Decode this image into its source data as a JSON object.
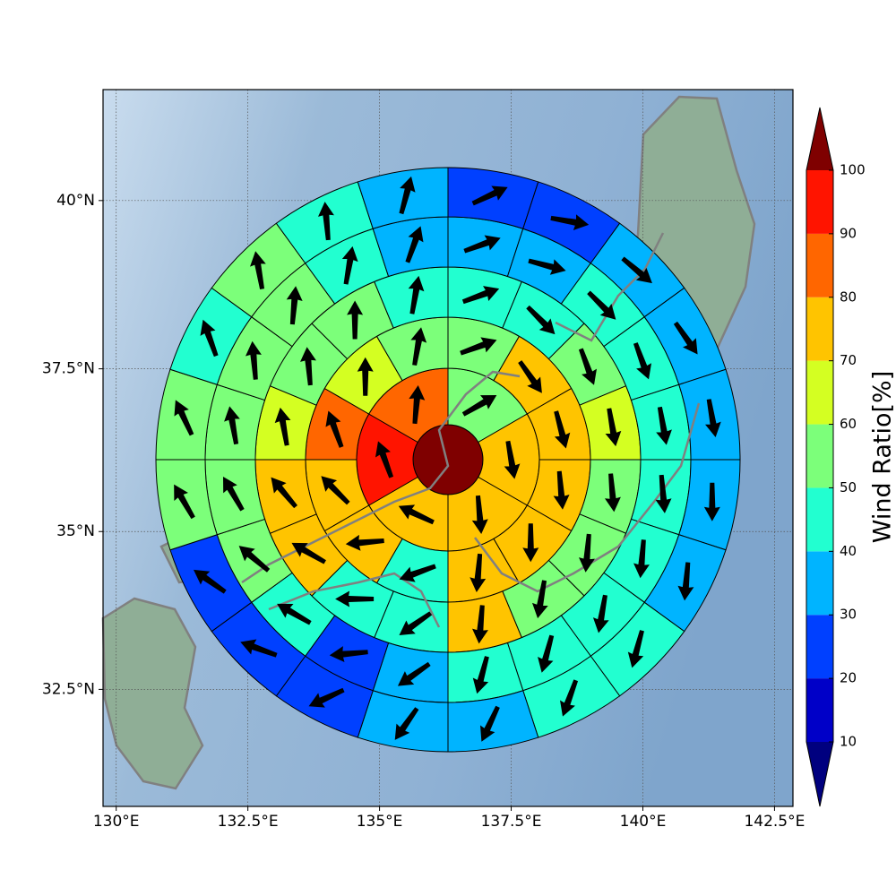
{
  "chart_data": {
    "type": "polar-map",
    "xlim": [
      129.75,
      142.85
    ],
    "ylim": [
      30.6,
      41.6
    ],
    "xticks": [
      {
        "value": 130,
        "label": "130°E"
      },
      {
        "value": 132.5,
        "label": "132.5°E"
      },
      {
        "value": 135,
        "label": "135°E"
      },
      {
        "value": 137.5,
        "label": "137.5°E"
      },
      {
        "value": 140,
        "label": "140°E"
      },
      {
        "value": 142.5,
        "label": "142.5°E"
      }
    ],
    "yticks": [
      {
        "value": 32.5,
        "label": "32.5°N"
      },
      {
        "value": 35,
        "label": "35°N"
      },
      {
        "value": 37.5,
        "label": "37.5°N"
      },
      {
        "value": 40,
        "label": "40°N"
      }
    ],
    "grid": true,
    "center_value": 100,
    "rings": [
      {
        "values": [
          55,
          75,
          75,
          75,
          95,
          85
        ],
        "directions": [
          60,
          170,
          175,
          295,
          340,
          5
        ]
      },
      {
        "values": [
          55,
          75,
          75,
          75,
          75,
          75,
          45,
          75,
          75,
          85,
          65,
          55
        ],
        "directions": [
          70,
          145,
          165,
          175,
          180,
          185,
          250,
          265,
          315,
          340,
          0,
          10
        ]
      },
      {
        "values": [
          45,
          45,
          55,
          65,
          55,
          55,
          55,
          75,
          45,
          45,
          75,
          75,
          65,
          55,
          55,
          45
        ],
        "directions": [
          70,
          135,
          160,
          170,
          175,
          185,
          190,
          185,
          235,
          270,
          300,
          320,
          350,
          355,
          0,
          10
        ]
      },
      {
        "values": [
          35,
          35,
          45,
          45,
          45,
          45,
          45,
          45,
          45,
          45,
          35,
          25,
          45,
          55,
          55,
          55,
          55,
          55,
          45,
          35
        ],
        "directions": [
          70,
          105,
          135,
          160,
          170,
          175,
          185,
          190,
          195,
          195,
          235,
          265,
          300,
          310,
          330,
          350,
          355,
          5,
          10,
          20
        ]
      },
      {
        "values": [
          25,
          25,
          35,
          35,
          35,
          35,
          35,
          45,
          45,
          35,
          35,
          25,
          25,
          25,
          55,
          55,
          45,
          55,
          45,
          35
        ],
        "directions": [
          65,
          100,
          130,
          145,
          170,
          180,
          185,
          195,
          200,
          205,
          215,
          245,
          290,
          305,
          330,
          335,
          340,
          350,
          355,
          15
        ]
      }
    ],
    "colorbar": {
      "label": "Wind Ratio[%]",
      "levels": [
        10,
        20,
        30,
        40,
        50,
        60,
        70,
        80,
        90,
        100
      ],
      "colors": [
        "#0000c8",
        "#0040ff",
        "#00b4ff",
        "#22ffd0",
        "#7cff7a",
        "#d4ff22",
        "#ffc400",
        "#ff6600",
        "#ff1400"
      ],
      "under": "#00007f",
      "over": "#7f0000"
    }
  }
}
